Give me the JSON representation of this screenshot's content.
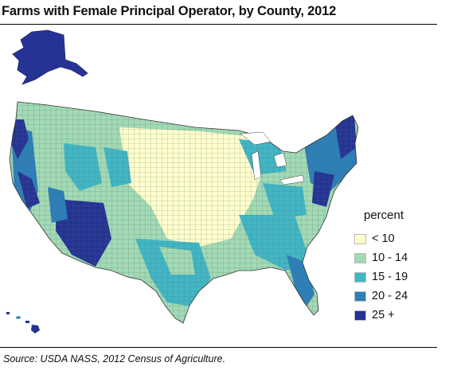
{
  "title": "Farms with Female Principal Operator, by County, 2012",
  "source": "Source: USDA NASS, 2012 Census of Agriculture.",
  "legend": {
    "title": "percent",
    "items": [
      {
        "label": "< 10",
        "color": "#ffffcc"
      },
      {
        "label": "10 - 14",
        "color": "#a1dab4"
      },
      {
        "label": "15 - 19",
        "color": "#41b6c4"
      },
      {
        "label": "20 - 24",
        "color": "#2c7fb8"
      },
      {
        "label": "25 +",
        "color": "#253494"
      }
    ]
  }
}
